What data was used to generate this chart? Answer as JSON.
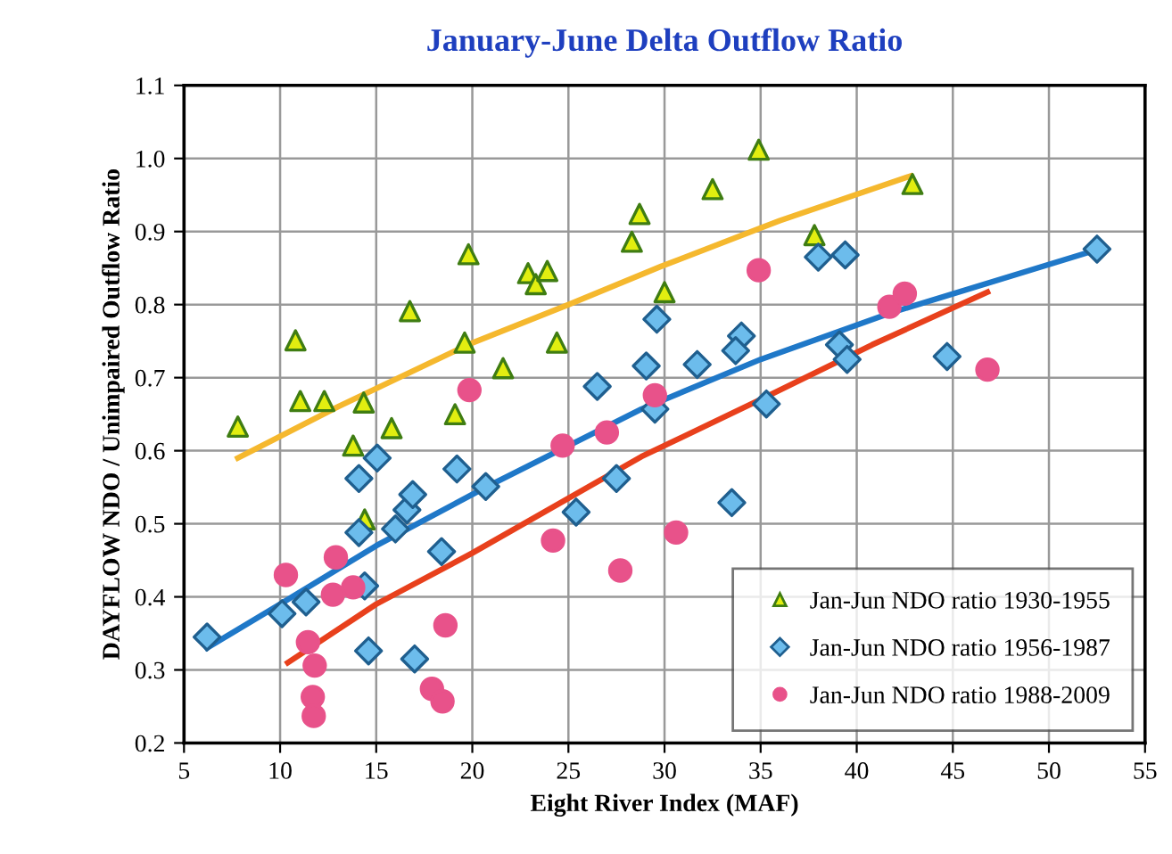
{
  "chart_data": {
    "type": "scatter",
    "title": "January-June Delta Outflow Ratio",
    "xlabel": "Eight River Index (MAF)",
    "ylabel": "DAYFLOW NDO / Unimpaired Outflow Ratio",
    "xlim": [
      5,
      55
    ],
    "xticks": [
      5,
      10,
      15,
      20,
      25,
      30,
      35,
      40,
      45,
      50,
      55
    ],
    "ylim": [
      0.2,
      1.1
    ],
    "yticks": [
      {
        "value": 0.2,
        "label": "0.2"
      },
      {
        "value": 0.3,
        "label": "0.3"
      },
      {
        "value": 0.4,
        "label": "0.4"
      },
      {
        "value": 0.5,
        "label": "0.5"
      },
      {
        "value": 0.6,
        "label": "0.6"
      },
      {
        "value": 0.7,
        "label": "0.7"
      },
      {
        "value": 0.8,
        "label": "0.8"
      },
      {
        "value": 0.9,
        "label": "0.9"
      },
      {
        "value": 1.0,
        "label": "1.0"
      },
      {
        "value": 1.1,
        "label": "1.1"
      }
    ],
    "grid": true,
    "legend": "bottom right",
    "series": [
      {
        "name": "Jan-Jun NDO ratio 1930-1955",
        "marker": "triangle",
        "color": "#e2ee10",
        "x": [
          7.8,
          10.8,
          11.05,
          12.3,
          14.35,
          15.8,
          19.1,
          13.8,
          16.75,
          19.8,
          19.6,
          21.6,
          22.9,
          23.3,
          23.9,
          24.4,
          28.3,
          28.7,
          14.4,
          37.8,
          30.0,
          34.9,
          32.5,
          42.9
        ],
        "values": [
          0.633,
          0.751,
          0.668,
          0.668,
          0.666,
          0.631,
          0.65,
          0.607,
          0.791,
          0.869,
          0.748,
          0.713,
          0.843,
          0.828,
          0.846,
          0.748,
          0.886,
          0.924,
          0.506,
          0.895,
          0.817,
          1.012,
          0.958,
          0.965
        ]
      },
      {
        "name": "Jan-Jun NDO ratio 1956-1987",
        "marker": "diamond",
        "color": "#6cbcec",
        "x": [
          6.2,
          10.1,
          11.35,
          14.1,
          15.05,
          14.1,
          14.4,
          14.6,
          16.0,
          16.6,
          16.9,
          17.0,
          18.4,
          19.2,
          20.7,
          25.4,
          27.5,
          26.5,
          29.6,
          29.05,
          29.5,
          31.7,
          34.0,
          33.7,
          35.3,
          38.0,
          39.4,
          39.1,
          39.5,
          44.7,
          52.5,
          33.5
        ],
        "values": [
          0.345,
          0.377,
          0.393,
          0.562,
          0.59,
          0.488,
          0.415,
          0.326,
          0.493,
          0.519,
          0.54,
          0.315,
          0.462,
          0.575,
          0.551,
          0.516,
          0.562,
          0.688,
          0.78,
          0.716,
          0.657,
          0.718,
          0.757,
          0.737,
          0.664,
          0.865,
          0.868,
          0.745,
          0.725,
          0.729,
          0.876,
          0.529
        ]
      },
      {
        "name": "Jan-Jun NDO ratio 1988-2009",
        "marker": "circle",
        "color": "#e8528a",
        "x": [
          10.3,
          11.45,
          11.8,
          11.7,
          11.75,
          12.9,
          12.75,
          13.8,
          18.6,
          17.9,
          18.45,
          24.2,
          24.7,
          27.0,
          27.7,
          19.85,
          34.9,
          29.5,
          41.7,
          42.5,
          46.8,
          30.6
        ],
        "values": [
          0.43,
          0.338,
          0.306,
          0.263,
          0.237,
          0.454,
          0.403,
          0.413,
          0.361,
          0.274,
          0.257,
          0.477,
          0.607,
          0.625,
          0.436,
          0.683,
          0.847,
          0.676,
          0.797,
          0.815,
          0.711,
          0.488
        ]
      },
      {
        "type": "line",
        "color": "#f5b82e",
        "x": [
          7.8,
          13,
          19.85,
          25,
          29.8,
          36,
          42.8
        ],
        "values": [
          0.59,
          0.66,
          0.746,
          0.8,
          0.852,
          0.915,
          0.976
        ]
      },
      {
        "type": "line",
        "color": "#1f78c8",
        "x": [
          6.2,
          10,
          15,
          20.7,
          28.8,
          35,
          41.8,
          52.5
        ],
        "values": [
          0.33,
          0.39,
          0.47,
          0.55,
          0.657,
          0.725,
          0.789,
          0.875
        ]
      },
      {
        "type": "line",
        "color": "#e8401c",
        "x": [
          10.4,
          15,
          20,
          28.8,
          35,
          40.8,
          46.8
        ],
        "values": [
          0.31,
          0.39,
          0.46,
          0.592,
          0.67,
          0.745,
          0.817
        ]
      }
    ]
  }
}
